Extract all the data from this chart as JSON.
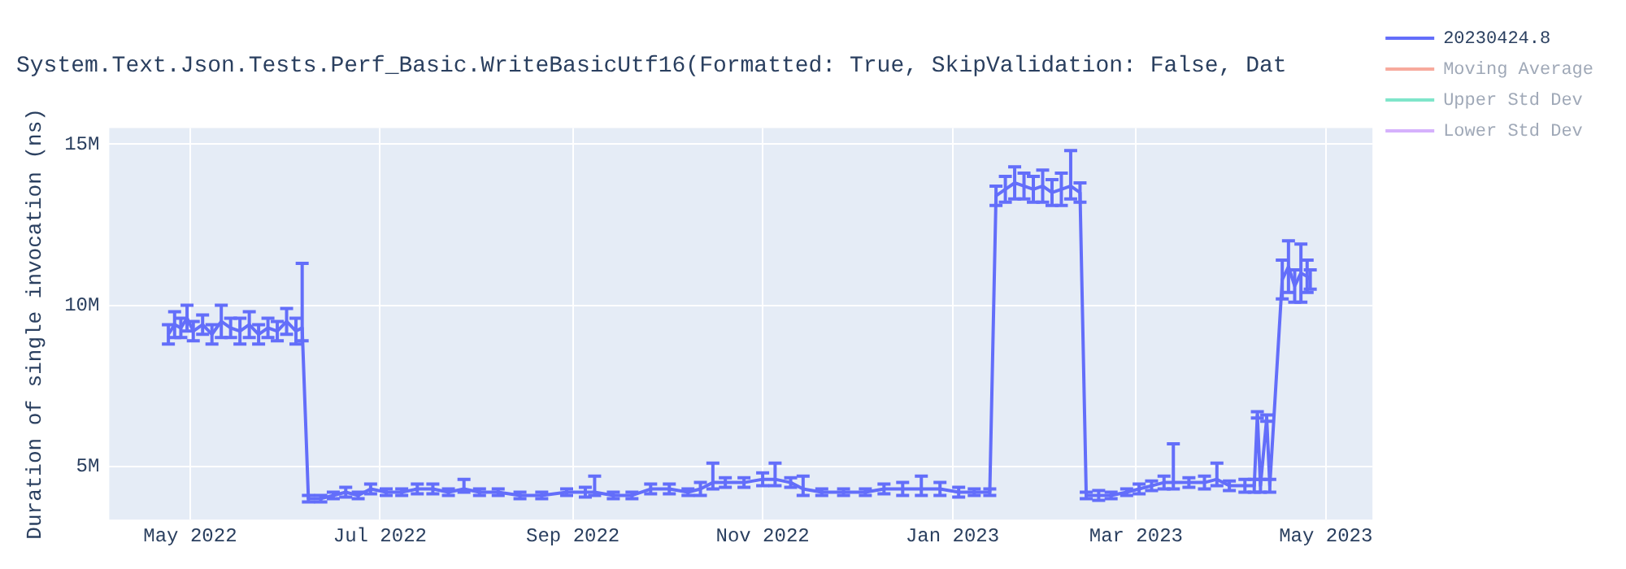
{
  "chart_data": {
    "type": "line",
    "title": "System.Text.Json.Tests.Perf_Basic.WriteBasicUtf16(Formatted: True, SkipValidation: False, Dat",
    "ylabel": "Duration of single invocation (ns)",
    "x": [
      "2022-04-24",
      "2022-04-26",
      "2022-04-28",
      "2022-04-30",
      "2022-05-02",
      "2022-05-05",
      "2022-05-08",
      "2022-05-11",
      "2022-05-14",
      "2022-05-17",
      "2022-05-20",
      "2022-05-23",
      "2022-05-26",
      "2022-05-29",
      "2022-06-01",
      "2022-06-04",
      "2022-06-06",
      "2022-06-08",
      "2022-06-12",
      "2022-06-16",
      "2022-06-20",
      "2022-06-24",
      "2022-06-28",
      "2022-07-03",
      "2022-07-08",
      "2022-07-13",
      "2022-07-18",
      "2022-07-23",
      "2022-07-28",
      "2022-08-02",
      "2022-08-08",
      "2022-08-15",
      "2022-08-22",
      "2022-08-30",
      "2022-09-05",
      "2022-09-08",
      "2022-09-14",
      "2022-09-20",
      "2022-09-26",
      "2022-10-02",
      "2022-10-08",
      "2022-10-12",
      "2022-10-16",
      "2022-10-20",
      "2022-10-26",
      "2022-11-01",
      "2022-11-05",
      "2022-11-10",
      "2022-11-14",
      "2022-11-20",
      "2022-11-27",
      "2022-12-04",
      "2022-12-10",
      "2022-12-16",
      "2022-12-22",
      "2022-12-28",
      "2023-01-03",
      "2023-01-08",
      "2023-01-13",
      "2023-01-15",
      "2023-01-18",
      "2023-01-21",
      "2023-01-24",
      "2023-01-27",
      "2023-01-30",
      "2023-02-02",
      "2023-02-05",
      "2023-02-08",
      "2023-02-11",
      "2023-02-13",
      "2023-02-17",
      "2023-02-21",
      "2023-02-26",
      "2023-03-02",
      "2023-03-06",
      "2023-03-10",
      "2023-03-13",
      "2023-03-18",
      "2023-03-23",
      "2023-03-27",
      "2023-03-31",
      "2023-04-05",
      "2023-04-08",
      "2023-04-09",
      "2023-04-10",
      "2023-04-12",
      "2023-04-13",
      "2023-04-17",
      "2023-04-19",
      "2023-04-21",
      "2023-04-23",
      "2023-04-25",
      "2023-04-26"
    ],
    "series": [
      {
        "name": "20230424.8",
        "color": "#636efa",
        "values": [
          9100000,
          9400000,
          9300000,
          9600000,
          9200000,
          9400000,
          9100000,
          9500000,
          9300000,
          9200000,
          9400000,
          9100000,
          9300000,
          9200000,
          9500000,
          9200000,
          9300000,
          4000000,
          4000000,
          4100000,
          4200000,
          4100000,
          4300000,
          4200000,
          4200000,
          4300000,
          4300000,
          4200000,
          4300000,
          4200000,
          4200000,
          4100000,
          4100000,
          4200000,
          4200000,
          4200000,
          4100000,
          4100000,
          4300000,
          4300000,
          4200000,
          4300000,
          4500000,
          4500000,
          4500000,
          4600000,
          4600000,
          4500000,
          4300000,
          4200000,
          4200000,
          4200000,
          4300000,
          4300000,
          4300000,
          4300000,
          4200000,
          4200000,
          4200000,
          13400000,
          13600000,
          13800000,
          13700000,
          13600000,
          13700000,
          13500000,
          13600000,
          13700000,
          13500000,
          4100000,
          4100000,
          4100000,
          4200000,
          4300000,
          4400000,
          4500000,
          4500000,
          4500000,
          4500000,
          4600000,
          4400000,
          4400000,
          4400000,
          6600000,
          4400000,
          6500000,
          4400000,
          10800000,
          11200000,
          10600000,
          11000000,
          10900000,
          10800000
        ],
        "errors": [
          300000,
          400000,
          300000,
          400000,
          300000,
          300000,
          300000,
          500000,
          300000,
          400000,
          400000,
          300000,
          300000,
          300000,
          400000,
          400000,
          [
            8900000,
            11300000
          ],
          100000,
          100000,
          100000,
          150000,
          100000,
          150000,
          100000,
          100000,
          150000,
          150000,
          100000,
          [
            4200000,
            4600000
          ],
          100000,
          100000,
          100000,
          100000,
          100000,
          150000,
          [
            4100000,
            4700000
          ],
          100000,
          100000,
          150000,
          150000,
          100000,
          200000,
          [
            4300000,
            5100000
          ],
          150000,
          150000,
          200000,
          [
            4400000,
            5100000
          ],
          150000,
          [
            4100000,
            4700000
          ],
          100000,
          100000,
          100000,
          150000,
          200000,
          [
            4100000,
            4700000
          ],
          200000,
          150000,
          100000,
          100000,
          300000,
          400000,
          500000,
          400000,
          400000,
          500000,
          400000,
          500000,
          [
            13300000,
            14800000
          ],
          300000,
          100000,
          150000,
          100000,
          100000,
          150000,
          150000,
          200000,
          [
            4300000,
            5700000
          ],
          150000,
          200000,
          [
            4400000,
            5100000
          ],
          150000,
          200000,
          200000,
          100000,
          200000,
          100000,
          200000,
          600000,
          800000,
          500000,
          900000,
          500000,
          300000
        ]
      },
      {
        "name": "Moving Average",
        "color": "#ef553b",
        "values": [
          null,
          null,
          null,
          null,
          null,
          null,
          null,
          null,
          null,
          null,
          null,
          null,
          null,
          null,
          null,
          null,
          null,
          null,
          null,
          null,
          null,
          null,
          null,
          null,
          null,
          null,
          null,
          null,
          null,
          null,
          null,
          null,
          null,
          null,
          null,
          null,
          null,
          null,
          null,
          null,
          null,
          null,
          null,
          null,
          null,
          null,
          null,
          null,
          null,
          null,
          null,
          null,
          null,
          null,
          null,
          null,
          null,
          null,
          null,
          null,
          null,
          null,
          null,
          null,
          null,
          null,
          null,
          null,
          null,
          null,
          null,
          null,
          null,
          null,
          null,
          null,
          null,
          null,
          null,
          null,
          null,
          null,
          null,
          null,
          null,
          null,
          null,
          null,
          null,
          null,
          null,
          null,
          null
        ]
      },
      {
        "name": "Upper Std Dev",
        "color": "#00cc96",
        "values": [
          null,
          null,
          null,
          null,
          null,
          null,
          null,
          null,
          null,
          null,
          null,
          null,
          null,
          null,
          null,
          null,
          null,
          null,
          null,
          null,
          null,
          null,
          null,
          null,
          null,
          null,
          null,
          null,
          null,
          null,
          null,
          null,
          null,
          null,
          null,
          null,
          null,
          null,
          null,
          null,
          null,
          null,
          null,
          null,
          null,
          null,
          null,
          null,
          null,
          null,
          null,
          null,
          null,
          null,
          null,
          null,
          null,
          null,
          null,
          null,
          null,
          null,
          null,
          null,
          null,
          null,
          null,
          null,
          null,
          null,
          null,
          null,
          null,
          null,
          null,
          null,
          null,
          null,
          null,
          null,
          null,
          null,
          null,
          null,
          null,
          null,
          null,
          null,
          null,
          null,
          null,
          null,
          null
        ]
      },
      {
        "name": "Lower Std Dev",
        "color": "#ab63fa",
        "values": [
          null,
          null,
          null,
          null,
          null,
          null,
          null,
          null,
          null,
          null,
          null,
          null,
          null,
          null,
          null,
          null,
          null,
          null,
          null,
          null,
          null,
          null,
          null,
          null,
          null,
          null,
          null,
          null,
          null,
          null,
          null,
          null,
          null,
          null,
          null,
          null,
          null,
          null,
          null,
          null,
          null,
          null,
          null,
          null,
          null,
          null,
          null,
          null,
          null,
          null,
          null,
          null,
          null,
          null,
          null,
          null,
          null,
          null,
          null,
          null,
          null,
          null,
          null,
          null,
          null,
          null,
          null,
          null,
          null,
          null,
          null,
          null,
          null,
          null,
          null,
          null,
          null,
          null,
          null,
          null,
          null,
          null,
          null,
          null,
          null,
          null,
          null,
          null,
          null,
          null,
          null,
          null,
          null
        ]
      }
    ],
    "xlim": [
      "2022-04-05",
      "2023-05-16"
    ],
    "xticks": [
      {
        "value": "2022-05-01",
        "label": "May 2022"
      },
      {
        "value": "2022-07-01",
        "label": "Jul 2022"
      },
      {
        "value": "2022-09-01",
        "label": "Sep 2022"
      },
      {
        "value": "2022-11-01",
        "label": "Nov 2022"
      },
      {
        "value": "2023-01-01",
        "label": "Jan 2023"
      },
      {
        "value": "2023-03-01",
        "label": "Mar 2023"
      },
      {
        "value": "2023-05-01",
        "label": "May 2023"
      }
    ],
    "ylim": [
      3350000,
      15500000
    ],
    "yticks": [
      {
        "value": 5000000,
        "label": "5M"
      },
      {
        "value": 10000000,
        "label": "10M"
      },
      {
        "value": 15000000,
        "label": "15M"
      }
    ],
    "grid": true,
    "legend": "top right",
    "marker": "none",
    "line_style": "solid"
  }
}
